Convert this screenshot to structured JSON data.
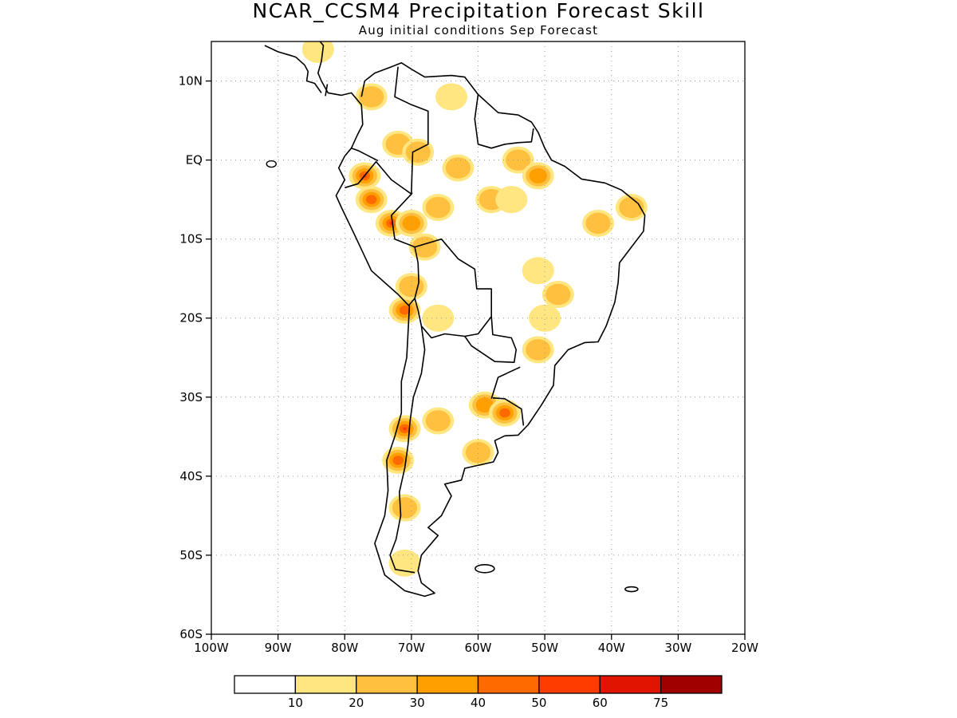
{
  "title": "NCAR_CCSM4 Precipitation Forecast Skill",
  "subtitle": "Aug initial conditions  Sep Forecast",
  "map": {
    "lon_range": [
      -100,
      -20
    ],
    "lat_range": [
      -60,
      15
    ],
    "gridlines": "dotted",
    "lat_ticks": [
      {
        "lat": 10,
        "label": "10N"
      },
      {
        "lat": 0,
        "label": "EQ"
      },
      {
        "lat": -10,
        "label": "10S"
      },
      {
        "lat": -20,
        "label": "20S"
      },
      {
        "lat": -30,
        "label": "30S"
      },
      {
        "lat": -40,
        "label": "40S"
      },
      {
        "lat": -50,
        "label": "50S"
      },
      {
        "lat": -60,
        "label": "60S"
      }
    ],
    "lon_ticks": [
      {
        "lon": -100,
        "label": "100W"
      },
      {
        "lon": -90,
        "label": "90W"
      },
      {
        "lon": -80,
        "label": "80W"
      },
      {
        "lon": -70,
        "label": "70W"
      },
      {
        "lon": -60,
        "label": "60W"
      },
      {
        "lon": -50,
        "label": "50W"
      },
      {
        "lon": -40,
        "label": "40W"
      },
      {
        "lon": -30,
        "label": "30W"
      },
      {
        "lon": -20,
        "label": "20W"
      }
    ]
  },
  "legend": {
    "colors": [
      "#ffffff",
      "#ffe680",
      "#ffc040",
      "#ffa000",
      "#ff6a00",
      "#ff3c00",
      "#e01400",
      "#a00000"
    ],
    "labels": [
      "10",
      "20",
      "30",
      "40",
      "50",
      "60",
      "75"
    ]
  },
  "skill_blobs": [
    {
      "lon": -77,
      "lat": -2,
      "level": 5
    },
    {
      "lon": -73,
      "lat": -8,
      "level": 5
    },
    {
      "lon": -76,
      "lat": -5,
      "level": 4
    },
    {
      "lon": -70,
      "lat": -8,
      "level": 3
    },
    {
      "lon": -66,
      "lat": -6,
      "level": 2
    },
    {
      "lon": -72,
      "lat": 2,
      "level": 2
    },
    {
      "lon": -76,
      "lat": 8,
      "level": 2
    },
    {
      "lon": -64,
      "lat": 8,
      "level": 1
    },
    {
      "lon": -69,
      "lat": 1,
      "level": 2
    },
    {
      "lon": -63,
      "lat": -1,
      "level": 2
    },
    {
      "lon": -68,
      "lat": -11,
      "level": 2
    },
    {
      "lon": -54,
      "lat": 0,
      "level": 2
    },
    {
      "lon": -51,
      "lat": -2,
      "level": 3
    },
    {
      "lon": -58,
      "lat": -5,
      "level": 2
    },
    {
      "lon": -55,
      "lat": -5,
      "level": 1
    },
    {
      "lon": -42,
      "lat": -8,
      "level": 2
    },
    {
      "lon": -37,
      "lat": -6,
      "level": 2
    },
    {
      "lon": -48,
      "lat": -17,
      "level": 2
    },
    {
      "lon": -50,
      "lat": -20,
      "level": 1
    },
    {
      "lon": -51,
      "lat": -24,
      "level": 2
    },
    {
      "lon": -70,
      "lat": -16,
      "level": 2
    },
    {
      "lon": -71,
      "lat": -19,
      "level": 4
    },
    {
      "lon": -66,
      "lat": -20,
      "level": 1
    },
    {
      "lon": -59,
      "lat": -31,
      "level": 3
    },
    {
      "lon": -56,
      "lat": -32,
      "level": 4
    },
    {
      "lon": -71,
      "lat": -34,
      "level": 5
    },
    {
      "lon": -72,
      "lat": -38,
      "level": 4
    },
    {
      "lon": -66,
      "lat": -33,
      "level": 2
    },
    {
      "lon": -60,
      "lat": -37,
      "level": 2
    },
    {
      "lon": -71,
      "lat": -44,
      "level": 2
    },
    {
      "lon": -71,
      "lat": -51,
      "level": 1
    },
    {
      "lon": -51,
      "lat": -14,
      "level": 1
    },
    {
      "lon": -84,
      "lat": 14,
      "level": 1
    }
  ]
}
